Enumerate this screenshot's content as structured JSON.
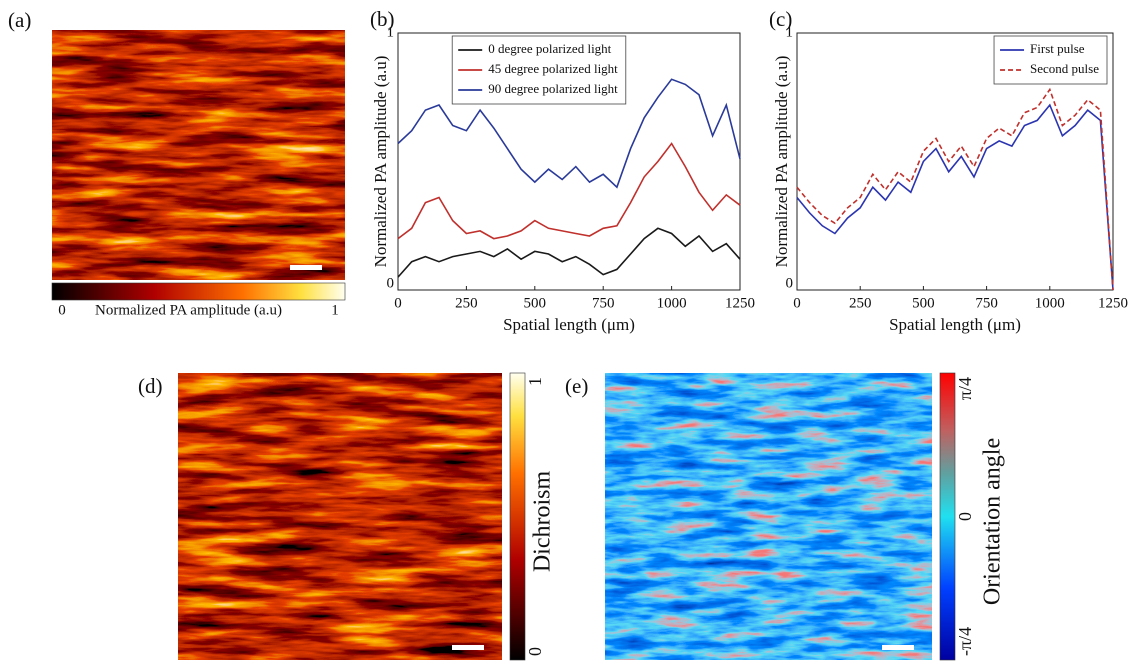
{
  "chart_data": [
    {
      "type": "line",
      "panel_label": "(b)",
      "xlabel": "Spatial length (μm)",
      "ylabel": "Normalized PA amplitude (a.u)",
      "x": [
        0,
        50,
        100,
        150,
        200,
        250,
        300,
        350,
        400,
        450,
        500,
        550,
        600,
        650,
        700,
        750,
        800,
        850,
        900,
        950,
        1000,
        1050,
        1100,
        1150,
        1200,
        1250
      ],
      "series": [
        {
          "name": "0 degree polarized light",
          "color": "#1a1a1a",
          "linestyle": "solid",
          "values": [
            0.05,
            0.11,
            0.13,
            0.11,
            0.13,
            0.14,
            0.15,
            0.13,
            0.16,
            0.12,
            0.15,
            0.14,
            0.11,
            0.13,
            0.1,
            0.06,
            0.08,
            0.14,
            0.2,
            0.24,
            0.22,
            0.17,
            0.21,
            0.15,
            0.18,
            0.12
          ]
        },
        {
          "name": "45 degree polarized light",
          "color": "#c0302c",
          "linestyle": "solid",
          "values": [
            0.2,
            0.24,
            0.34,
            0.36,
            0.27,
            0.22,
            0.23,
            0.2,
            0.21,
            0.23,
            0.27,
            0.24,
            0.23,
            0.22,
            0.21,
            0.24,
            0.25,
            0.34,
            0.44,
            0.5,
            0.57,
            0.48,
            0.38,
            0.31,
            0.37,
            0.33
          ]
        },
        {
          "name": "90 degree polarized light",
          "color": "#2a3a9a",
          "linestyle": "solid",
          "values": [
            0.57,
            0.62,
            0.7,
            0.72,
            0.64,
            0.62,
            0.7,
            0.63,
            0.55,
            0.47,
            0.42,
            0.47,
            0.43,
            0.48,
            0.42,
            0.45,
            0.4,
            0.55,
            0.67,
            0.75,
            0.82,
            0.8,
            0.76,
            0.6,
            0.72,
            0.51
          ]
        }
      ],
      "xlim": [
        0,
        1250
      ],
      "ylim": [
        0,
        1
      ],
      "xticks": [
        0,
        250,
        500,
        750,
        1000,
        1250
      ],
      "yticks": [
        0,
        1
      ],
      "legend": "upper center"
    },
    {
      "type": "line",
      "panel_label": "(c)",
      "xlabel": "Spatial length (μm)",
      "ylabel": "Normalized PA amplitude (a.u)",
      "x": [
        0,
        50,
        100,
        150,
        200,
        250,
        300,
        350,
        400,
        450,
        500,
        550,
        600,
        650,
        700,
        750,
        800,
        850,
        900,
        950,
        1000,
        1050,
        1100,
        1150,
        1200,
        1250
      ],
      "series": [
        {
          "name": "First pulse",
          "color": "#2b35b0",
          "linestyle": "solid",
          "values": [
            0.36,
            0.3,
            0.25,
            0.22,
            0.28,
            0.32,
            0.4,
            0.35,
            0.42,
            0.38,
            0.5,
            0.55,
            0.46,
            0.52,
            0.44,
            0.55,
            0.58,
            0.56,
            0.64,
            0.66,
            0.72,
            0.6,
            0.64,
            0.7,
            0.66,
            0.0
          ]
        },
        {
          "name": "Second pulse",
          "color": "#c0302c",
          "linestyle": "dashed",
          "values": [
            0.4,
            0.34,
            0.29,
            0.26,
            0.32,
            0.36,
            0.45,
            0.39,
            0.46,
            0.42,
            0.54,
            0.59,
            0.5,
            0.56,
            0.48,
            0.59,
            0.63,
            0.6,
            0.69,
            0.71,
            0.78,
            0.64,
            0.68,
            0.74,
            0.7,
            0.0
          ]
        }
      ],
      "xlim": [
        0,
        1250
      ],
      "ylim": [
        0,
        1
      ],
      "xticks": [
        0,
        250,
        500,
        750,
        1000,
        1250
      ],
      "yticks": [
        0,
        1
      ],
      "legend": "upper right"
    }
  ],
  "images": [
    {
      "panel_label": "(a)",
      "colormap": "hot",
      "colorbar_label": "Normalized PA amplitude (a.u)",
      "colorbar_ticks": [
        "0",
        "1"
      ]
    },
    {
      "panel_label": "(d)",
      "colormap": "hot",
      "colorbar_label": "Dichroism",
      "colorbar_ticks": [
        "1",
        "0"
      ]
    },
    {
      "panel_label": "(e)",
      "colormap": "jet",
      "colorbar_label": "Orientation angle",
      "colorbar_ticks": [
        "π/4",
        "0",
        "-π/4"
      ]
    }
  ]
}
